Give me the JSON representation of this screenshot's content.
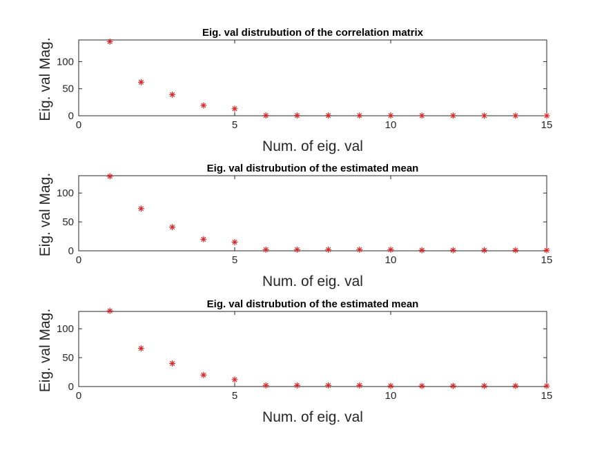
{
  "figure": {
    "marker_color": "#d62728",
    "axis_color": "#262626"
  },
  "chart_data": [
    {
      "type": "scatter",
      "marker": "asterisk",
      "title": "Eig. val distrubution of the correlation matrix",
      "xlabel": "Num. of eig. val",
      "ylabel": "Eig. val Mag.",
      "xlim": [
        0,
        15
      ],
      "ylim": [
        0,
        140
      ],
      "xticks": [
        0,
        5,
        10,
        15
      ],
      "yticks": [
        0,
        50,
        100
      ],
      "grid": false,
      "x": [
        1,
        2,
        3,
        4,
        5,
        6,
        7,
        8,
        9,
        10,
        11,
        12,
        13,
        14,
        15
      ],
      "y": [
        137,
        62,
        39,
        19,
        13,
        0.5,
        0.5,
        0.5,
        0.4,
        0.4,
        0.3,
        0.3,
        0.2,
        0.2,
        0.1
      ]
    },
    {
      "type": "scatter",
      "marker": "asterisk",
      "title": "Eig. val distrubution of the estimated mean",
      "xlabel": "Num. of eig. val",
      "ylabel": "Eig. val Mag.",
      "xlim": [
        0,
        15
      ],
      "ylim": [
        0,
        130
      ],
      "xticks": [
        0,
        5,
        10,
        15
      ],
      "yticks": [
        0,
        50,
        100
      ],
      "grid": false,
      "x": [
        1,
        2,
        3,
        4,
        5,
        6,
        7,
        8,
        9,
        10,
        11,
        12,
        13,
        14,
        15
      ],
      "y": [
        129,
        73,
        41,
        20,
        15,
        2,
        2,
        2,
        2,
        2,
        1,
        1,
        1,
        1,
        1
      ]
    },
    {
      "type": "scatter",
      "marker": "asterisk",
      "title": "Eig. val distrubution of the estimated mean",
      "xlabel": "Num. of eig. val",
      "ylabel": "Eig. val Mag.",
      "xlim": [
        0,
        15
      ],
      "ylim": [
        0,
        130
      ],
      "xticks": [
        0,
        5,
        10,
        15
      ],
      "yticks": [
        0,
        50,
        100
      ],
      "grid": false,
      "x": [
        1,
        2,
        3,
        4,
        5,
        6,
        7,
        8,
        9,
        10,
        11,
        12,
        13,
        14,
        15
      ],
      "y": [
        131,
        66,
        40,
        20,
        12,
        2,
        2,
        2,
        2,
        1,
        1,
        1,
        1,
        1,
        1
      ]
    }
  ]
}
